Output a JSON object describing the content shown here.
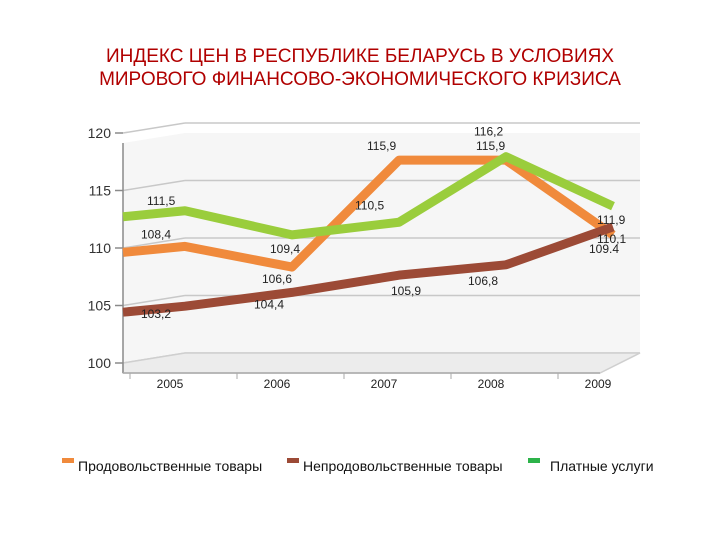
{
  "title_line1": "ИНДЕКС ЦЕН В РЕСПУБЛИКЕ БЕЛАРУСЬ В УСЛОВИЯХ",
  "title_line2": "МИРОВОГО ФИНАНСОВО-ЭКОНОМИЧЕСКОГО КРИЗИСА",
  "chart_data": {
    "type": "line",
    "title": "ИНДЕКС ЦЕН В РЕСПУБЛИКЕ БЕЛАРУСЬ В УСЛОВИЯХ МИРОВОГО ФИНАНСОВО-ЭКОНОМИЧЕСКОГО КРИЗИСА",
    "categories": [
      "2005",
      "2006",
      "2007",
      "2008",
      "2009"
    ],
    "yticks": [
      "100",
      "105",
      "110",
      "115",
      "120"
    ],
    "ylim": [
      100,
      120
    ],
    "grid": true,
    "legend_position": "bottom",
    "series": [
      {
        "name": "Продовольственные товары",
        "color": "#f08a3c",
        "values": [
          108.4,
          106.6,
          115.9,
          115.9,
          109.4
        ],
        "labels": [
          "108,4",
          "106,6",
          "115,9",
          "115,9",
          "109.4"
        ]
      },
      {
        "name": "Непродовольственные товары",
        "color": "#9c4a36",
        "values": [
          103.2,
          104.4,
          105.9,
          106.8,
          110.1
        ],
        "labels": [
          "103,2",
          "104,4",
          "105,9",
          "106,8",
          "110,1"
        ]
      },
      {
        "name": "Платные услуги",
        "color": "#9acd3c",
        "values": [
          111.5,
          109.4,
          110.5,
          116.2,
          111.9
        ],
        "labels": [
          "111,5",
          "109,4",
          "110,5",
          "116,2",
          "111,9"
        ]
      }
    ]
  }
}
